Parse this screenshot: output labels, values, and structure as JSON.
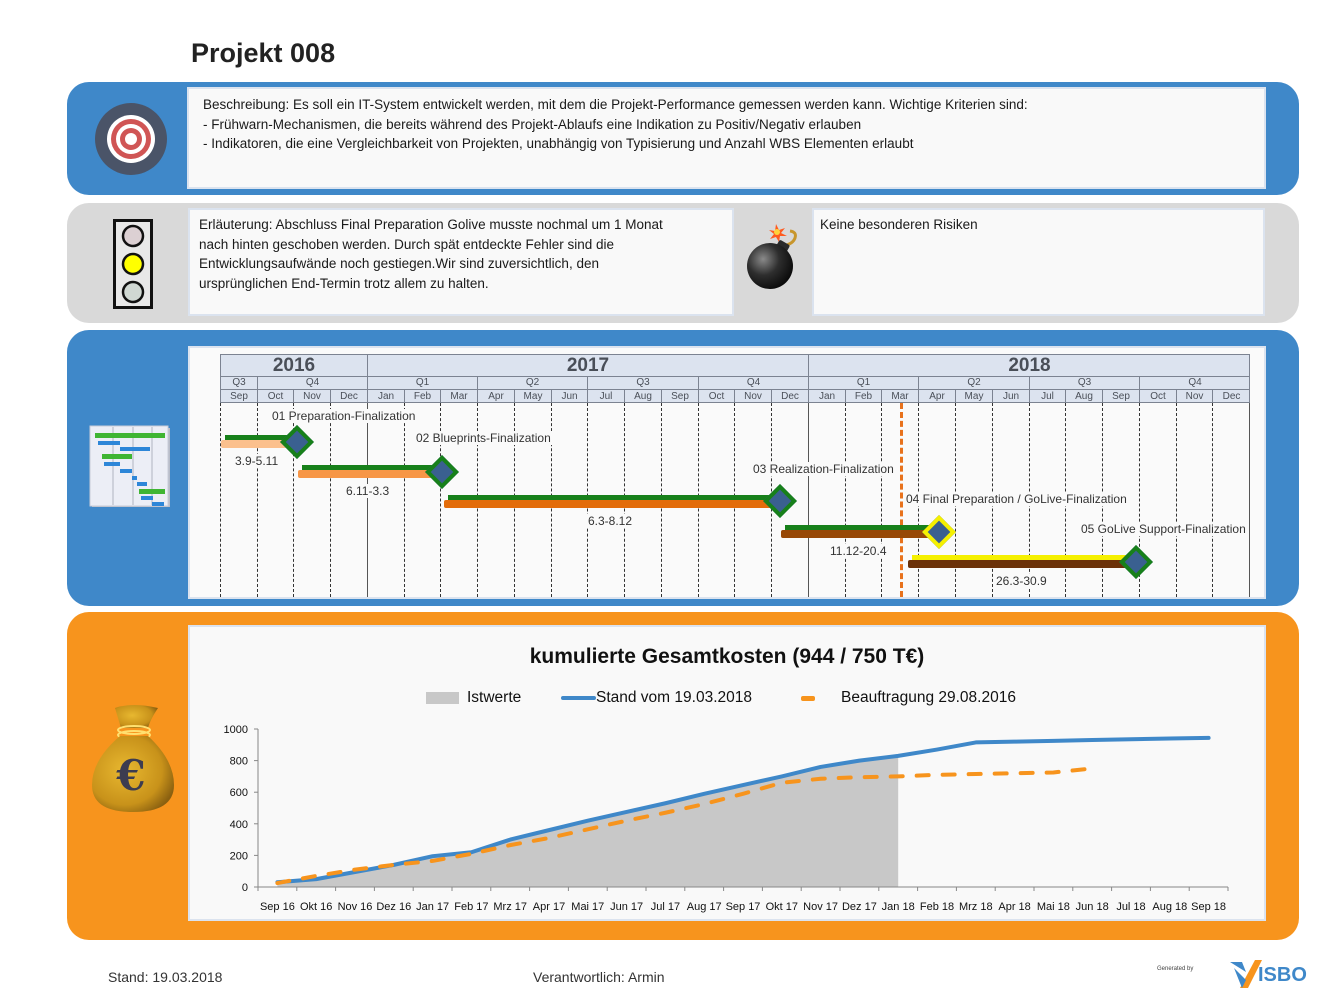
{
  "header": {
    "title": "Projekt 008"
  },
  "description": {
    "icon": "target-icon",
    "lines": [
      "Beschreibung: Es soll ein IT-System entwickelt werden, mit dem die Projekt-Performance  gemessen werden kann. Wichtige Kriterien sind:",
      "- Frühwarn-Mechanismen,  die bereits während des Projekt-Ablaufs eine Indikation zu Positiv/Negativ erlauben",
      "- Indikatoren, die eine Vergleichbarkeit von Projekten, unabhängig von Typisierung und Anzahl WBS Elementen erlaubt"
    ]
  },
  "status": {
    "traffic_light_icon": "traffic-light-icon",
    "traffic_light_state": "yellow",
    "traffic_light_colors": {
      "red_off": "#dcd0d3",
      "yellow_on": "#ffff00",
      "green_off": "#d0d8d3"
    },
    "explanation_lines": [
      "Erläuterung: Abschluss Final Preparation Golive musste nochmal um 1 Monat",
      "nach hinten geschoben werden.  Durch spät entdeckte Fehler sind die",
      "Entwicklungsaufwände noch gestiegen.Wir sind zuversichtlich, den",
      "ursprünglichen End-Termin trotz  allem zu halten."
    ],
    "risk_icon": "bomb-icon",
    "risks": "Keine besonderen Risiken"
  },
  "timeline": {
    "icon": "gantt-chart-icon",
    "years": [
      {
        "label": "2016",
        "start": 0,
        "months": 4
      },
      {
        "label": "2017",
        "start": 4,
        "months": 12
      },
      {
        "label": "2018",
        "start": 16,
        "months": 12
      }
    ],
    "quarters": [
      {
        "label": "Q3",
        "start": 0,
        "months": 1
      },
      {
        "label": "Q4",
        "start": 1,
        "months": 3
      },
      {
        "label": "Q1",
        "start": 4,
        "months": 3
      },
      {
        "label": "Q2",
        "start": 7,
        "months": 3
      },
      {
        "label": "Q3",
        "start": 10,
        "months": 3
      },
      {
        "label": "Q4",
        "start": 13,
        "months": 3
      },
      {
        "label": "Q1",
        "start": 16,
        "months": 3
      },
      {
        "label": "Q2",
        "start": 19,
        "months": 3
      },
      {
        "label": "Q3",
        "start": 22,
        "months": 3
      },
      {
        "label": "Q4",
        "start": 25,
        "months": 3
      }
    ],
    "months": [
      "Sep",
      "Oct",
      "Nov",
      "Dec",
      "Jan",
      "Feb",
      "Mar",
      "Apr",
      "May",
      "Jun",
      "Jul",
      "Aug",
      "Sep",
      "Oct",
      "Nov",
      "Dec",
      "Jan",
      "Feb",
      "Mar",
      "Apr",
      "May",
      "Jun",
      "Jul",
      "Aug",
      "Sep",
      "Oct",
      "Nov",
      "Dec"
    ],
    "today_marker": {
      "label": "19.03.2018",
      "color": "#e8721c"
    },
    "phases": [
      {
        "name": "01 Preparation-Finalization",
        "dates": "3.9-5.11",
        "plan_color": "#fbc08d",
        "actual_color": "#17801a",
        "milestone_border": "#17801a"
      },
      {
        "name": "02 Blueprints-Finalization",
        "dates": "6.11-3.3",
        "plan_color": "#f79646",
        "actual_color": "#17801a",
        "milestone_border": "#17801a"
      },
      {
        "name": "03 Realization-Finalization",
        "dates": "6.3-8.12",
        "plan_color": "#e36c0a",
        "actual_color": "#17801a",
        "milestone_border": "#17801a"
      },
      {
        "name": "04 Final  Preparation  / GoLive-Finalization",
        "dates": "11.12-20.4",
        "plan_color": "#974806",
        "actual_color": "#17801a",
        "milestone_border": "#f5f000"
      },
      {
        "name": "05 GoLive  Support-Finalization",
        "dates": "26.3-30.9",
        "plan_color": "#6b3108",
        "actual_color": "#f5f000",
        "milestone_border": "#17801a"
      }
    ]
  },
  "costs": {
    "icon": "money-bag-euro-icon"
  },
  "chart_data": {
    "type": "line",
    "title": "kumulierte Gesamtkosten (944 / 750 T€)",
    "xlabel": "",
    "ylabel": "",
    "ylim": [
      0,
      1000
    ],
    "yticks": [
      0,
      200,
      400,
      600,
      800,
      1000
    ],
    "grid": false,
    "legend_position": "top",
    "categories": [
      "Sep 16",
      "Okt 16",
      "Nov 16",
      "Dez 16",
      "Jan 17",
      "Feb 17",
      "Mrz 17",
      "Apr 17",
      "Mai 17",
      "Jun 17",
      "Jul 17",
      "Aug 17",
      "Sep 17",
      "Okt 17",
      "Nov 17",
      "Dez 17",
      "Jan 18",
      "Feb 18",
      "Mrz 18",
      "Apr 18",
      "Mai 18",
      "Jun 18",
      "Jul 18",
      "Aug 18",
      "Sep 18"
    ],
    "series": [
      {
        "name": "Istwerte",
        "kind": "area",
        "color": "#c8c8c8",
        "values": [
          30,
          50,
          95,
          140,
          195,
          220,
          300,
          360,
          420,
          475,
          530,
          590,
          645,
          700,
          760,
          800,
          830,
          null,
          null,
          null,
          null,
          null,
          null,
          null,
          null
        ]
      },
      {
        "name": "Stand vom 19.03.2018",
        "kind": "line",
        "color": "#3f88c9",
        "values": [
          30,
          50,
          95,
          140,
          195,
          220,
          300,
          360,
          420,
          475,
          530,
          590,
          645,
          700,
          760,
          800,
          830,
          870,
          915,
          920,
          925,
          930,
          935,
          940,
          944
        ]
      },
      {
        "name": "Beauftragung  29.08.2016",
        "kind": "dashed",
        "color": "#f7941d",
        "values": [
          25,
          70,
          110,
          140,
          165,
          210,
          265,
          310,
          365,
          420,
          470,
          525,
          590,
          660,
          685,
          695,
          700,
          710,
          715,
          720,
          725,
          750,
          null,
          null,
          null
        ]
      }
    ]
  },
  "footer": {
    "stand": "Stand: 19.03.2018",
    "owner": "Verantwortlich: Armin",
    "generated_by": "Generated by",
    "logo_text": "ISBO",
    "logo_icon": "visbo-logo-icon"
  }
}
